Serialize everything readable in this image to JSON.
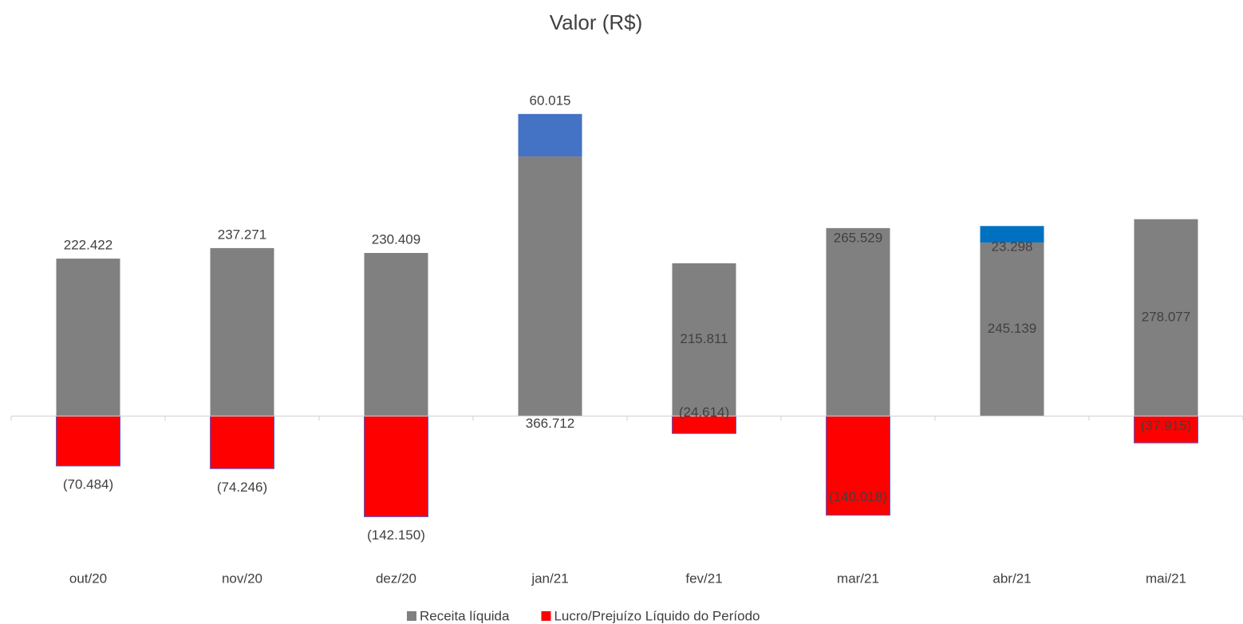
{
  "chart_data": {
    "type": "bar",
    "stacked": true,
    "title": "Valor (R$)",
    "categories": [
      "out/20",
      "nov/20",
      "dez/20",
      "jan/21",
      "fev/21",
      "mar/21",
      "abr/21",
      "mai/21"
    ],
    "ylim": [
      -190000,
      475000
    ],
    "series": [
      {
        "name": "Receita líquida",
        "color": "#808080",
        "values": [
          222422,
          237271,
          230409,
          366712,
          215811,
          265529,
          245139,
          278077
        ],
        "value_labels": [
          "222.422",
          "237.271",
          "230.409",
          "366.712",
          "215.811",
          "265.529",
          "245.139",
          "278.077"
        ]
      },
      {
        "name": "Lucro/Prejuízo Líquido do Período",
        "color": "#ff0000",
        "colors": [
          "#ff0000",
          "#ff0000",
          "#ff0000",
          "#4472c4",
          "#ff0000",
          "#ff0000",
          "#0070c0",
          "#ff0000"
        ],
        "values": [
          -70484,
          -74246,
          -142150,
          60015,
          -24614,
          -140018,
          23298,
          -37915
        ],
        "value_labels": [
          "(70.484)",
          "(74.246)",
          "(142.150)",
          "60.015",
          "(24.614)",
          "(140.018)",
          "23.298",
          "(37.915)"
        ]
      }
    ],
    "legend": "bottom"
  }
}
